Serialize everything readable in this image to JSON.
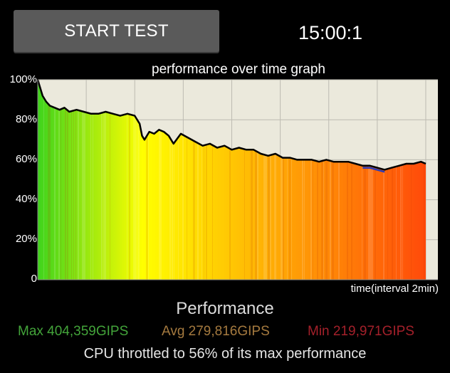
{
  "header": {
    "start_button_label": "START TEST",
    "timer": "15:00:1"
  },
  "chart_data": {
    "type": "area",
    "title": "performance over time graph",
    "xlabel": "time(interval 2min)",
    "ylabel": "",
    "ylim": [
      0,
      100
    ],
    "y_ticks": [
      "100%",
      "80%",
      "60%",
      "40%",
      "20%",
      "0"
    ],
    "x_interval_minutes": 2,
    "x_range_minutes": [
      0,
      16.5
    ],
    "grid": true,
    "colors": {
      "background": "#ebe9dc",
      "grid": "#bdbbb2",
      "line": "#000000",
      "line_highlight": "#2b3bb8",
      "fill_start": "#3fd41c",
      "fill_mid": "#ffff00",
      "fill_end": "#ff4a0a"
    },
    "series": [
      {
        "x": [
          0,
          0.1,
          0.2,
          0.35,
          0.5,
          0.7,
          0.9,
          1.1,
          1.3,
          1.6,
          1.9,
          2.2,
          2.5,
          2.8,
          3.1,
          3.4,
          3.7,
          4.0,
          4.2,
          4.3,
          4.4,
          4.6,
          4.8,
          5.0,
          5.2,
          5.4,
          5.6,
          5.9,
          6.2,
          6.5,
          6.8,
          7.1,
          7.4,
          7.7,
          8.0,
          8.3,
          8.6,
          8.9,
          9.2,
          9.5,
          9.8,
          10.1,
          10.4,
          10.7,
          11.0,
          11.3,
          11.6,
          11.9,
          12.2,
          12.5,
          12.8,
          13.1,
          13.4,
          13.7,
          14.0,
          14.3,
          14.6,
          14.9,
          15.2,
          15.5,
          15.8,
          16.0
        ],
        "y": [
          100,
          96,
          92,
          89,
          87,
          86,
          85,
          86,
          84,
          85,
          84,
          83,
          83,
          84,
          83,
          82,
          83,
          82,
          78,
          72,
          70,
          74,
          73,
          75,
          74,
          72,
          68,
          73,
          71,
          69,
          67,
          68,
          66,
          67,
          65,
          66,
          65,
          65,
          63,
          62,
          63,
          61,
          61,
          60,
          60,
          60,
          59,
          60,
          59,
          59,
          59,
          58,
          57,
          57,
          56,
          55,
          56,
          57,
          58,
          58,
          59,
          58
        ]
      }
    ]
  },
  "performance": {
    "title": "Performance",
    "max_label": "Max 404,359GIPS",
    "avg_label": "Avg 279,816GIPS",
    "min_label": "Min 219,971GIPS",
    "colors": {
      "max": "#43a43a",
      "avg": "#a57a3f",
      "min": "#a3202a"
    }
  },
  "throttle_message": "CPU throttled to 56% of its max performance"
}
